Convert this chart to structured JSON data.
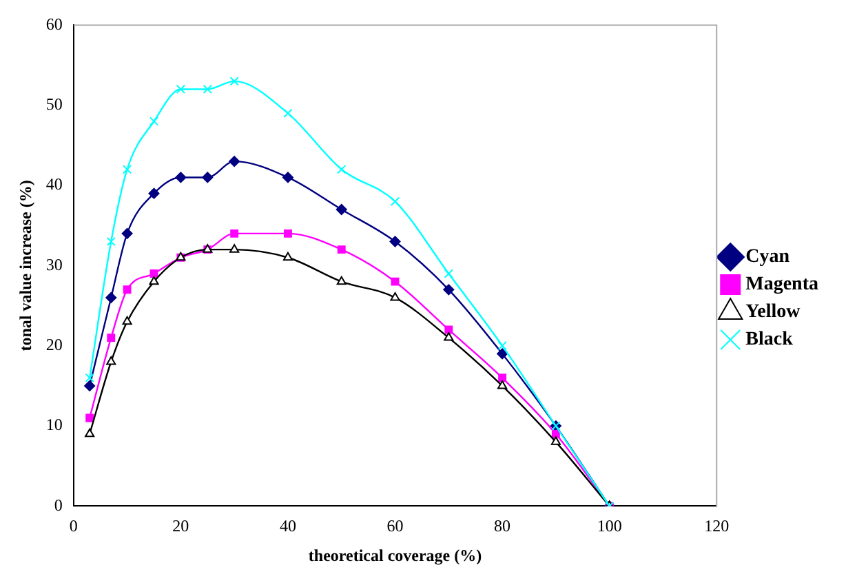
{
  "chart_data": {
    "type": "line",
    "xlabel": "theoretical coverage (%)",
    "ylabel": "tonal value increase (%)",
    "x": [
      3,
      7,
      10,
      15,
      20,
      25,
      30,
      40,
      50,
      60,
      70,
      80,
      90,
      100
    ],
    "xlim": [
      0,
      120
    ],
    "xticks": [
      0,
      20,
      40,
      60,
      80,
      100,
      120
    ],
    "ylim": [
      0,
      60
    ],
    "yticks": [
      0,
      10,
      20,
      30,
      40,
      50,
      60
    ],
    "grid": false,
    "legend": "right",
    "line_style": "solid",
    "series": [
      {
        "name": "Cyan",
        "color": "#000080",
        "marker": "diamond",
        "values": [
          15,
          26,
          34,
          39,
          41,
          41,
          43,
          41,
          37,
          33,
          27,
          19,
          10,
          0
        ]
      },
      {
        "name": "Magenta",
        "color": "#ff00ff",
        "marker": "square",
        "values": [
          11,
          21,
          27,
          29,
          31,
          32,
          34,
          34,
          32,
          28,
          22,
          16,
          9,
          0
        ]
      },
      {
        "name": "Yellow",
        "color": "#000000",
        "marker": "triangle",
        "values": [
          9,
          18,
          23,
          28,
          31,
          32,
          32,
          31,
          28,
          26,
          21,
          15,
          8,
          0
        ]
      },
      {
        "name": "Black",
        "color": "#00ffff",
        "marker": "cross",
        "values": [
          16,
          33,
          42,
          48,
          52,
          52,
          53,
          49,
          42,
          38,
          29,
          20,
          10,
          0
        ]
      }
    ]
  }
}
